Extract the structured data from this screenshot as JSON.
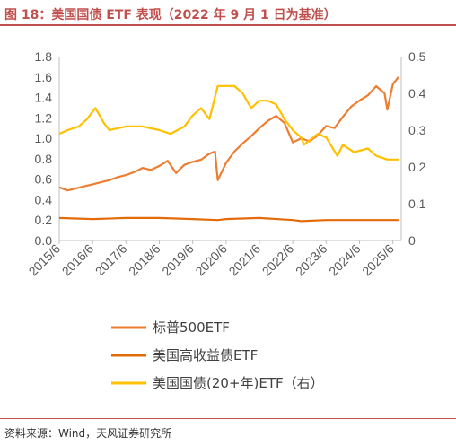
{
  "title": "图 18：美国国债 ETF 表现（2022 年 9 月 1 日为基准）",
  "source": "资料来源：Wind，天风证券研究所",
  "chart_data": {
    "type": "line",
    "title": "图 18：美国国债 ETF 表现（2022 年 9 月 1 日为基准）",
    "xlabel": "",
    "ylabel": "",
    "x_ticks": [
      "2015/6",
      "2016/6",
      "2017/6",
      "2018/6",
      "2019/6",
      "2020/6",
      "2021/6",
      "2022/6",
      "2023/6",
      "2024/6",
      "2025/6"
    ],
    "y_left": {
      "lim": [
        0,
        1.8
      ],
      "ticks": [
        "0.0",
        "0.2",
        "0.4",
        "0.6",
        "0.8",
        "1.0",
        "1.2",
        "1.4",
        "1.6",
        "1.8"
      ]
    },
    "y_right": {
      "lim": [
        0,
        0.5
      ],
      "ticks": [
        "0",
        "0.1",
        "0.2",
        "0.3",
        "0.4",
        "0.5"
      ]
    },
    "grid": false,
    "legend_position": "bottom",
    "series": [
      {
        "name": "标普500ETF",
        "axis": "left",
        "color": "#ed7d31",
        "x": [
          "2015-06",
          "2015-09",
          "2015-12",
          "2016-03",
          "2016-06",
          "2016-09",
          "2016-12",
          "2017-03",
          "2017-06",
          "2017-09",
          "2017-12",
          "2018-03",
          "2018-06",
          "2018-09",
          "2018-12",
          "2019-03",
          "2019-06",
          "2019-09",
          "2019-12",
          "2020-02",
          "2020-03",
          "2020-06",
          "2020-09",
          "2020-12",
          "2021-03",
          "2021-06",
          "2021-09",
          "2021-12",
          "2022-03",
          "2022-06",
          "2022-09",
          "2022-12",
          "2023-03",
          "2023-06",
          "2023-09",
          "2023-12",
          "2024-03",
          "2024-06",
          "2024-09",
          "2024-12",
          "2025-03",
          "2025-04",
          "2025-06",
          "2025-08"
        ],
        "values": [
          0.52,
          0.49,
          0.51,
          0.53,
          0.55,
          0.57,
          0.59,
          0.62,
          0.64,
          0.67,
          0.71,
          0.69,
          0.73,
          0.78,
          0.66,
          0.74,
          0.77,
          0.79,
          0.85,
          0.87,
          0.59,
          0.76,
          0.87,
          0.95,
          1.02,
          1.1,
          1.17,
          1.22,
          1.15,
          0.96,
          1.0,
          0.97,
          1.03,
          1.12,
          1.1,
          1.21,
          1.31,
          1.37,
          1.42,
          1.51,
          1.44,
          1.28,
          1.53,
          1.6
        ]
      },
      {
        "name": "美国高收益债ETF",
        "axis": "left",
        "color": "#e36c0a",
        "x": [
          "2015-06",
          "2016-06",
          "2017-06",
          "2018-06",
          "2019-06",
          "2020-03",
          "2020-06",
          "2021-06",
          "2022-06",
          "2022-09",
          "2023-06",
          "2024-06",
          "2025-06",
          "2025-08"
        ],
        "values": [
          0.22,
          0.21,
          0.22,
          0.22,
          0.21,
          0.2,
          0.21,
          0.22,
          0.2,
          0.19,
          0.2,
          0.2,
          0.2,
          0.2
        ]
      },
      {
        "name": "美国国债(20+年)ETF（右）",
        "axis": "right",
        "color": "#ffc000",
        "x": [
          "2015-06",
          "2015-09",
          "2016-01",
          "2016-04",
          "2016-07",
          "2016-10",
          "2016-12",
          "2017-06",
          "2017-12",
          "2018-06",
          "2018-10",
          "2019-03",
          "2019-06",
          "2019-09",
          "2019-12",
          "2020-03",
          "2020-06",
          "2020-09",
          "2020-12",
          "2021-03",
          "2021-06",
          "2021-09",
          "2021-12",
          "2022-03",
          "2022-06",
          "2022-09",
          "2022-10",
          "2023-03",
          "2023-06",
          "2023-10",
          "2023-12",
          "2024-04",
          "2024-09",
          "2024-12",
          "2025-04",
          "2025-08"
        ],
        "values": [
          0.29,
          0.3,
          0.31,
          0.33,
          0.36,
          0.32,
          0.3,
          0.31,
          0.31,
          0.3,
          0.29,
          0.31,
          0.34,
          0.36,
          0.33,
          0.42,
          0.42,
          0.42,
          0.4,
          0.36,
          0.38,
          0.38,
          0.37,
          0.33,
          0.3,
          0.28,
          0.26,
          0.29,
          0.28,
          0.23,
          0.26,
          0.24,
          0.25,
          0.23,
          0.22,
          0.22
        ]
      }
    ]
  },
  "legend_labels": [
    "标普500ETF",
    "美国高收益债ETF",
    "美国国债(20+年)ETF（右）"
  ]
}
